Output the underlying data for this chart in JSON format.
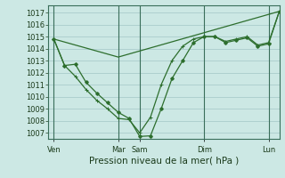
{
  "background_color": "#cce8e4",
  "grid_color": "#aacccc",
  "line_color": "#2d6e2d",
  "marker_color": "#2d6e2d",
  "xlabel": "Pression niveau de la mer( hPa )",
  "xlabel_fontsize": 7.5,
  "tick_label_fontsize": 6.0,
  "ylim": [
    1006.5,
    1017.6
  ],
  "yticks": [
    1007,
    1008,
    1009,
    1010,
    1011,
    1012,
    1013,
    1014,
    1015,
    1016,
    1017
  ],
  "x_day_labels": [
    "Ven",
    "Mar",
    "Sam",
    "Dim",
    "Lun"
  ],
  "x_day_positions": [
    0,
    48,
    64,
    112,
    160
  ],
  "xlim": [
    -4,
    168
  ],
  "series1_x": [
    0,
    8,
    16,
    24,
    32,
    40,
    48,
    56,
    64,
    72,
    80,
    88,
    96,
    104,
    112,
    120,
    128,
    136,
    144,
    152,
    160,
    168
  ],
  "series1_y": [
    1014.8,
    1012.6,
    1012.7,
    1011.2,
    1010.3,
    1009.5,
    1008.7,
    1008.2,
    1006.7,
    1006.75,
    1009.0,
    1011.5,
    1013.0,
    1014.5,
    1015.0,
    1015.0,
    1014.5,
    1014.7,
    1014.9,
    1014.2,
    1014.4,
    1017.1
  ],
  "series2_x": [
    0,
    8,
    16,
    24,
    32,
    40,
    48,
    56,
    64,
    72,
    80,
    88,
    96,
    104,
    112,
    120,
    128,
    136,
    144,
    152,
    160,
    168
  ],
  "series2_y": [
    1014.8,
    1012.6,
    1011.7,
    1010.6,
    1009.7,
    1009.0,
    1008.2,
    1008.1,
    1007.0,
    1008.3,
    1011.0,
    1013.0,
    1014.2,
    1014.8,
    1015.0,
    1015.0,
    1014.6,
    1014.8,
    1015.0,
    1014.3,
    1014.5,
    1017.1
  ],
  "series3_x": [
    0,
    48,
    168
  ],
  "series3_y": [
    1014.8,
    1013.3,
    1017.1
  ],
  "vline_positions": [
    0,
    48,
    64,
    112,
    160
  ]
}
